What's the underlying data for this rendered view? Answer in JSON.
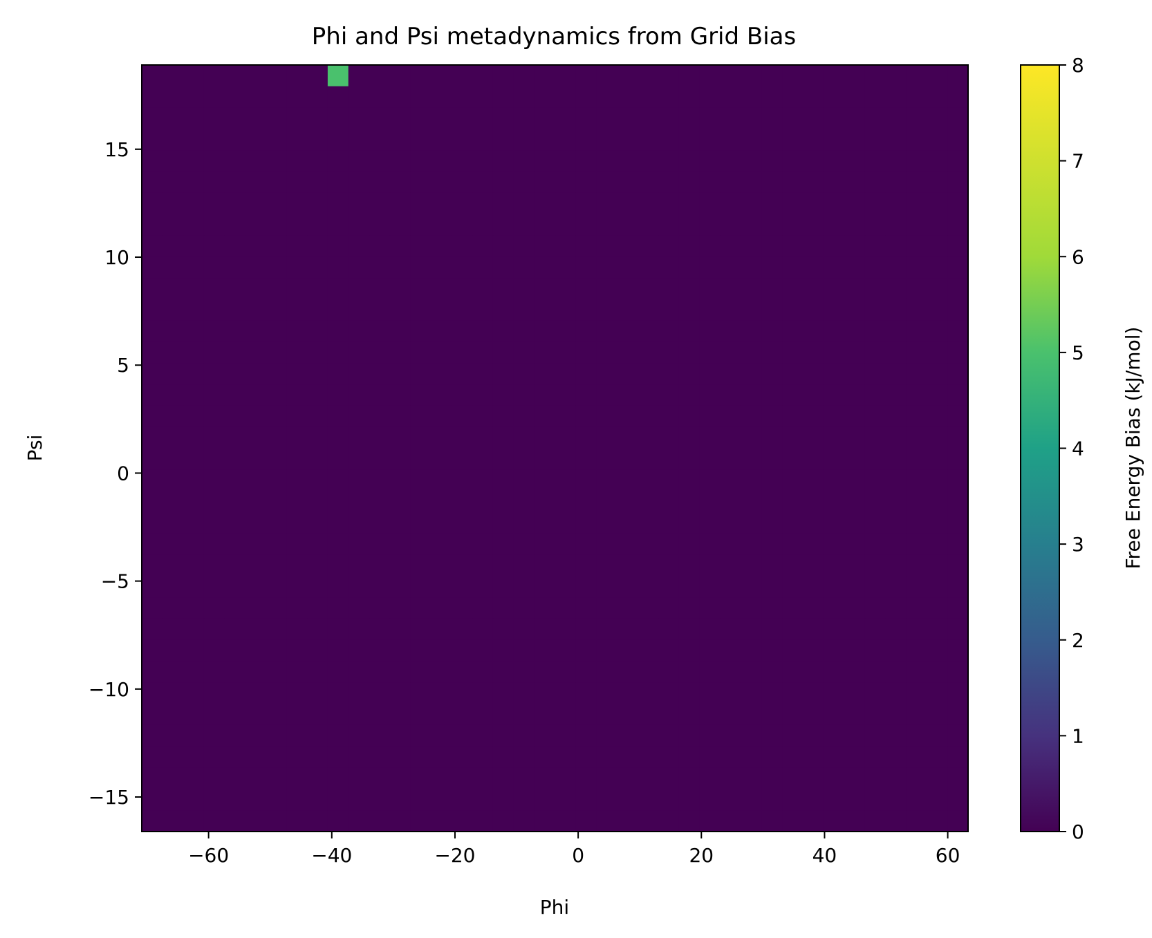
{
  "chart_data": {
    "type": "heatmap",
    "title": "Phi and Psi metadynamics from Grid Bias",
    "xlabel": "Phi",
    "ylabel": "Psi",
    "xlim": [
      -70.85,
      63.3
    ],
    "ylim": [
      -16.6,
      18.9
    ],
    "x_ticks": [
      -60,
      -40,
      -20,
      0,
      20,
      40,
      60
    ],
    "y_ticks": [
      -15,
      -10,
      -5,
      0,
      5,
      10,
      15
    ],
    "x_tick_labels": [
      "−60",
      "−40",
      "−20",
      "0",
      "20",
      "40",
      "60"
    ],
    "y_tick_labels": [
      "−15",
      "−10",
      "−5",
      "0",
      "5",
      "10",
      "15"
    ],
    "colorbar": {
      "label": "Free Energy Bias (kJ/mol)",
      "range": [
        0,
        8
      ],
      "ticks": [
        0,
        1,
        2,
        3,
        4,
        5,
        6,
        7,
        8
      ],
      "tick_labels": [
        "0",
        "1",
        "2",
        "3",
        "4",
        "5",
        "6",
        "7",
        "8"
      ],
      "colormap": "viridis"
    },
    "grid": false,
    "z": [
      [
        0,
        0,
        0,
        0,
        0,
        0,
        0,
        0,
        0,
        5,
        0,
        0,
        0,
        0,
        0,
        0,
        0,
        0,
        0,
        0,
        0,
        0,
        0,
        0,
        0,
        0,
        0,
        0,
        0,
        0,
        0,
        0,
        0,
        0,
        0,
        0,
        0,
        0,
        0,
        0
      ],
      [
        0,
        0,
        0,
        0,
        0,
        0,
        0,
        0,
        0,
        0,
        0,
        0,
        0,
        0,
        0,
        0,
        0,
        0,
        0,
        0,
        0,
        0,
        0,
        0,
        0,
        0,
        0,
        0,
        0,
        0,
        0,
        0,
        0,
        0,
        0,
        0,
        0,
        0,
        0,
        0
      ],
      [
        0,
        0,
        0,
        0,
        0,
        0,
        0,
        0,
        0,
        0,
        0,
        0,
        0,
        0,
        0,
        0,
        0,
        0,
        0,
        0,
        0,
        0,
        0,
        0,
        0,
        0,
        0,
        0,
        0,
        0,
        0,
        0,
        0,
        0,
        0,
        0,
        0,
        0,
        0,
        0
      ],
      [
        0,
        0,
        0,
        0,
        0,
        0,
        0,
        0,
        0,
        0,
        0,
        0,
        0,
        0,
        0,
        0,
        0,
        0,
        0,
        0,
        0,
        0,
        0,
        0,
        0,
        0,
        0,
        0,
        0,
        0,
        0,
        0,
        0,
        0,
        0,
        0,
        0,
        0,
        0,
        0
      ],
      [
        0,
        0,
        0,
        0,
        0,
        0,
        0,
        0,
        0,
        0,
        0,
        0,
        0,
        0,
        0,
        0,
        0,
        0,
        0,
        0,
        0,
        0,
        0,
        0,
        0,
        0,
        0,
        0,
        0,
        0,
        0,
        0,
        0,
        0,
        0,
        0,
        0,
        0,
        0,
        0
      ],
      [
        0,
        0,
        0,
        0,
        0,
        0,
        0,
        0,
        0,
        0,
        0,
        0,
        0,
        0,
        0,
        0,
        0,
        0,
        0,
        0,
        0,
        0,
        0,
        0,
        0,
        0,
        0,
        0,
        0,
        0,
        0,
        0,
        0,
        0,
        0,
        0,
        0,
        0,
        0,
        0
      ],
      [
        0,
        0,
        0,
        0,
        0,
        0,
        0,
        0,
        0,
        0,
        0,
        0,
        0,
        0,
        0,
        0,
        0,
        0,
        0,
        0,
        0,
        0,
        0,
        0,
        0,
        0,
        0,
        0,
        0,
        0,
        0,
        0,
        0,
        0,
        0,
        0,
        0,
        0,
        0,
        0
      ],
      [
        0,
        0,
        0,
        0,
        0,
        0,
        0,
        0,
        0,
        0,
        0,
        0,
        0,
        0,
        0,
        0,
        0,
        0,
        0,
        0,
        0,
        0,
        0,
        0,
        0,
        0,
        0,
        0,
        0,
        0,
        0,
        0,
        0,
        0,
        0,
        0,
        0,
        0,
        0,
        0
      ],
      [
        0,
        0,
        0,
        0,
        0,
        0,
        0,
        0,
        0,
        0,
        0,
        0,
        0,
        0,
        0,
        0,
        0,
        0,
        0,
        0,
        0,
        0,
        0,
        0,
        0,
        0,
        0,
        0,
        0,
        0,
        0,
        0,
        0,
        0,
        0,
        0,
        0,
        0,
        0,
        0
      ],
      [
        0,
        0,
        0,
        0,
        0,
        0,
        0,
        0,
        0,
        0,
        0,
        0,
        0,
        0,
        0,
        0,
        0,
        0,
        0,
        0,
        0,
        0,
        0,
        0,
        0,
        0,
        0,
        0,
        0,
        0,
        0,
        0,
        0,
        0,
        0,
        0,
        0,
        0,
        0,
        0
      ],
      [
        0,
        0,
        0,
        0,
        0,
        0,
        0,
        0,
        0,
        0,
        0,
        0,
        0,
        0,
        0,
        0,
        0,
        0,
        0,
        0,
        0,
        0,
        0,
        0,
        0,
        0,
        0,
        0,
        0,
        0,
        0,
        0,
        0,
        0,
        0,
        0,
        0,
        0,
        0,
        0
      ],
      [
        0,
        0,
        0,
        0,
        0,
        0,
        0,
        0,
        0,
        0,
        0,
        0,
        0,
        0,
        0,
        0,
        0,
        0,
        0,
        0,
        0,
        0,
        0,
        0,
        0,
        0,
        0,
        0,
        0,
        0,
        0,
        0,
        0,
        0,
        0,
        0,
        0,
        0,
        0,
        0
      ],
      [
        0,
        0,
        0,
        0,
        0,
        0,
        0,
        0,
        0,
        0,
        0,
        0,
        0,
        0,
        0,
        0,
        0,
        0,
        0,
        0,
        0,
        0,
        0,
        0,
        0,
        0,
        0,
        0,
        0,
        0,
        0,
        0,
        0,
        0,
        0,
        0,
        0,
        0,
        0,
        0
      ],
      [
        0,
        0,
        0,
        0,
        0,
        0,
        0,
        0,
        0,
        0,
        0,
        0,
        0,
        0,
        0,
        0,
        0,
        0,
        0,
        0,
        0,
        0,
        0,
        0,
        0,
        0,
        0,
        0,
        0,
        0,
        0,
        0,
        0,
        0,
        0,
        0,
        0,
        0,
        0,
        0
      ],
      [
        0,
        0,
        0,
        0,
        0,
        0,
        0,
        0,
        0,
        0,
        0,
        0,
        0,
        0,
        0,
        0,
        0,
        0,
        0,
        0,
        0,
        0,
        0,
        0,
        0,
        0,
        0,
        0,
        0,
        0,
        0,
        0,
        0,
        0,
        0,
        0,
        0,
        0,
        0,
        0
      ],
      [
        0,
        0,
        0,
        0,
        0,
        0,
        0,
        0,
        0,
        0,
        0,
        0,
        0,
        0,
        0,
        0,
        0,
        0,
        0,
        0,
        0,
        0,
        0,
        0,
        0,
        0,
        0,
        0,
        0,
        0,
        0,
        0,
        0,
        0,
        0,
        0,
        0,
        0,
        0,
        0
      ],
      [
        0,
        0,
        0,
        0,
        0,
        0,
        0,
        0,
        0,
        0,
        0,
        0,
        0,
        0,
        0,
        0,
        0,
        0,
        0,
        0,
        0,
        0,
        0,
        0,
        0,
        0,
        0,
        0,
        0,
        0,
        0,
        0,
        0,
        0,
        0,
        0,
        0,
        0,
        0,
        0
      ],
      [
        0,
        0,
        0,
        0,
        0,
        0,
        0,
        0,
        0,
        0,
        0,
        0,
        0,
        0,
        0,
        0,
        0,
        0,
        0,
        0,
        0,
        0,
        0,
        0,
        0,
        0,
        0,
        0,
        0,
        0,
        0,
        0,
        0,
        0,
        0,
        0,
        0,
        0,
        0,
        0
      ],
      [
        0,
        0,
        0,
        0,
        0,
        0,
        0,
        0,
        0,
        0,
        0,
        0,
        0,
        0,
        0,
        0,
        0,
        0,
        0,
        0,
        0,
        0,
        0,
        0,
        0,
        0,
        0,
        0,
        0,
        0,
        0,
        0,
        0,
        0,
        0,
        0,
        0,
        0,
        0,
        0
      ],
      [
        0,
        0,
        0,
        0,
        0,
        0,
        0,
        0,
        0,
        0,
        0,
        0,
        0,
        0,
        0,
        0,
        0,
        0,
        0,
        0,
        0,
        0,
        0,
        0,
        0,
        0,
        0,
        0,
        0,
        0,
        0,
        0,
        0,
        0,
        0,
        0,
        0,
        0,
        0,
        0
      ],
      [
        0,
        0,
        0,
        0,
        0,
        0,
        0,
        0,
        0,
        0,
        0,
        0,
        0,
        0,
        0,
        0,
        0,
        0,
        0,
        0,
        0,
        0,
        0,
        0,
        0,
        0,
        0,
        0,
        0,
        0,
        0,
        0,
        0,
        0,
        0,
        0,
        0,
        0,
        0,
        0
      ],
      [
        0,
        0,
        0,
        0,
        0,
        0,
        0,
        0,
        0,
        0,
        0,
        0,
        0,
        0,
        0,
        0,
        0,
        0,
        0,
        0,
        0,
        0,
        0,
        0,
        0,
        0,
        0,
        0,
        0,
        0,
        0,
        0,
        0,
        0,
        0,
        0,
        0,
        0,
        0,
        0
      ],
      [
        0,
        0,
        0,
        0,
        0,
        0,
        0,
        0,
        0,
        0,
        0,
        0,
        0,
        0,
        0,
        0,
        0,
        0,
        0,
        0,
        0,
        0,
        0,
        0,
        0,
        0,
        0,
        0,
        0,
        0,
        0,
        0,
        0,
        0,
        0,
        0,
        0,
        0,
        0,
        0
      ],
      [
        0,
        0,
        0,
        0,
        0,
        0,
        0,
        0,
        0,
        0,
        0,
        0,
        0,
        0,
        0,
        0,
        0,
        0,
        0,
        0,
        0,
        0,
        0,
        0,
        0,
        0,
        0,
        0,
        0,
        0,
        0,
        0,
        0,
        0,
        0,
        0,
        0,
        0,
        0,
        0
      ],
      [
        0,
        0,
        0,
        0,
        0,
        0,
        0,
        0,
        0,
        0,
        0,
        0,
        0,
        0,
        0,
        0,
        0,
        0,
        0,
        0,
        0,
        0,
        0,
        0,
        0,
        0,
        0,
        0,
        0,
        0,
        0,
        0,
        0,
        0,
        0,
        0,
        0,
        0,
        0,
        0
      ],
      [
        0,
        0,
        0,
        0,
        0,
        0,
        0,
        0,
        0,
        0,
        0,
        0,
        0,
        0,
        0,
        0,
        0,
        0,
        0,
        0,
        0,
        0,
        0,
        0,
        0,
        0,
        0,
        0,
        0,
        0,
        0,
        0,
        0,
        0,
        0,
        0,
        0,
        0,
        0,
        0
      ],
      [
        0,
        0,
        0,
        0,
        0,
        0,
        0,
        0,
        0,
        0,
        0,
        0,
        0,
        0,
        0,
        0,
        0,
        0,
        0,
        0,
        0,
        0,
        0,
        0,
        0,
        0,
        0,
        0,
        0,
        0,
        0,
        0,
        0,
        0,
        0,
        0,
        0,
        0,
        0,
        0
      ],
      [
        0,
        0,
        0,
        0,
        0,
        0,
        0,
        0,
        0,
        0,
        0,
        0,
        0,
        0,
        0,
        0,
        0,
        0,
        0,
        0,
        0,
        0,
        0,
        0,
        0,
        0,
        0,
        0,
        0,
        0,
        0,
        0,
        0,
        0,
        0,
        0,
        0,
        0,
        0,
        0
      ],
      [
        0,
        0,
        0,
        0,
        0,
        0,
        0,
        0,
        0,
        0,
        0,
        0,
        0,
        0,
        0,
        0,
        0,
        0,
        0,
        0,
        0,
        0,
        0,
        0,
        0,
        0,
        0,
        0,
        0,
        0,
        0,
        0,
        0,
        0,
        0,
        0,
        0,
        0,
        0,
        0
      ],
      [
        0,
        0,
        0,
        0,
        0,
        0,
        0,
        0,
        0,
        0,
        0,
        0,
        0,
        0,
        0,
        0,
        0,
        0,
        0,
        0,
        0,
        0,
        0,
        0,
        0,
        0,
        0,
        0,
        0,
        0,
        0,
        0,
        0,
        0,
        0,
        0,
        0,
        0,
        0,
        0
      ],
      [
        0,
        0,
        0,
        0,
        0,
        0,
        0,
        0,
        0,
        0,
        0,
        0,
        0,
        0,
        0,
        0,
        0,
        0,
        0,
        0,
        0,
        0,
        0,
        0,
        0,
        0,
        0,
        0,
        0,
        0,
        0,
        0,
        0,
        0,
        0,
        0,
        0,
        0,
        0,
        0
      ],
      [
        0,
        0,
        0,
        0,
        0,
        0,
        0,
        0,
        0,
        0,
        0,
        0,
        0,
        0,
        0,
        0,
        0,
        0,
        0,
        0,
        0,
        0,
        0,
        0,
        0,
        0,
        0,
        0,
        0,
        0,
        0,
        0,
        0,
        0,
        0,
        0,
        0,
        0,
        0,
        0
      ],
      [
        0,
        0,
        0,
        0,
        0,
        0,
        0,
        0,
        0,
        0,
        0,
        0,
        0,
        0,
        0,
        0,
        0,
        0,
        0,
        0,
        0,
        0,
        0,
        0,
        0,
        0,
        0,
        0,
        0,
        0,
        0,
        0,
        0,
        0,
        0,
        0,
        0,
        0,
        0,
        0
      ],
      [
        0,
        0,
        0,
        0,
        0,
        0,
        0,
        0,
        0,
        0,
        0,
        0,
        0,
        0,
        0,
        0,
        0,
        0,
        0,
        0,
        0,
        0,
        0,
        0,
        0,
        0,
        0,
        0,
        0,
        0,
        0,
        0,
        0,
        0,
        0,
        0,
        0,
        0,
        0,
        0
      ],
      [
        0,
        0,
        0,
        0,
        0,
        0,
        0,
        0,
        0,
        0,
        0,
        0,
        0,
        0,
        0,
        0,
        0,
        0,
        0,
        0,
        0,
        0,
        0,
        0,
        0,
        0,
        0,
        0,
        0,
        0,
        0,
        0,
        0,
        0,
        0,
        0,
        0,
        0,
        0,
        0
      ],
      [
        0,
        0,
        0,
        0,
        0,
        0,
        0,
        0,
        0,
        0,
        0,
        0,
        0,
        0,
        0,
        0,
        0,
        0,
        0,
        0,
        0,
        0,
        0,
        0,
        0,
        0,
        0,
        0,
        0,
        0,
        0,
        0,
        0,
        0,
        0,
        0,
        0,
        0,
        0,
        0
      ]
    ]
  }
}
